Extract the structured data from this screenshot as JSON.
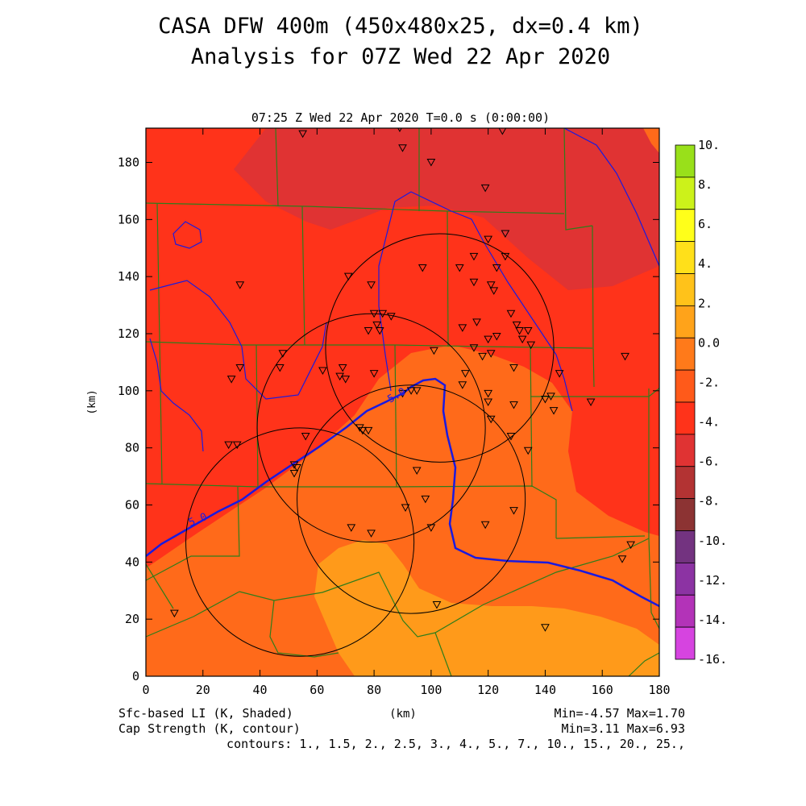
{
  "title_line1": "CASA DFW 400m (450x480x25, dx=0.4 km)",
  "title_line2": "Analysis for 07Z Wed 22 Apr 2020",
  "subtitle": "07:25 Z Wed 22 Apr 2020   T=0.0 s (0:00:00)",
  "xlabel": "(km)",
  "ylabel": "(km)",
  "x_ticks": [
    "0",
    "20",
    "40",
    "60",
    "80",
    "100",
    "120",
    "140",
    "160",
    "180"
  ],
  "y_ticks": [
    "0",
    "20",
    "40",
    "60",
    "80",
    "100",
    "120",
    "140",
    "160",
    "180"
  ],
  "x_range": [
    0,
    180
  ],
  "y_range": [
    0,
    192
  ],
  "colorbar": {
    "labels": [
      "10.",
      "8.",
      "6.",
      "4.",
      "2.",
      "0.0",
      "-2.",
      "-4.",
      "-6.",
      "-8.",
      "-10.",
      "-12.",
      "-14.",
      "-16."
    ],
    "colors": [
      "#99e01a",
      "#ccf21a",
      "#ffff1a",
      "#ffe01a",
      "#ffc21a",
      "#ffa31a",
      "#ff7a1a",
      "#ff5a1a",
      "#ff331a",
      "#e03333",
      "#b33333",
      "#8c3333",
      "#733380",
      "#8c33a3",
      "#b333b8",
      "#d644e0"
    ]
  },
  "field_colors": {
    "band_m6_m4": "#e03333",
    "band_m4_m2": "#ff331a",
    "band_m2_0": "#ff6a1a",
    "band_0_2": "#ff9a1a",
    "cap_contour": "#1a1ae0",
    "boundaries": "#2e7d1a",
    "rings": "#000000"
  },
  "contour_label": "5.0",
  "footer_left1": "Sfc-based LI (K, Shaded)",
  "footer_left2": "Cap Strength (K, contour)",
  "footer_center": "(km)",
  "footer_right1": "Min=-4.57 Max=1.70",
  "footer_right2": "Min=3.11 Max=6.93",
  "footer_contours": "contours: 1., 1.5, 2., 2.5, 3., 4., 5., 7., 10., 15., 20., 25.,",
  "radar_rings": [
    {
      "cx": 54,
      "cy": 47,
      "r": 40
    },
    {
      "cx": 79,
      "cy": 87,
      "r": 40
    },
    {
      "cx": 103,
      "cy": 115,
      "r": 40
    },
    {
      "cx": 93,
      "cy": 62,
      "r": 40
    }
  ],
  "stations": [
    [
      55,
      190
    ],
    [
      89,
      192
    ],
    [
      90,
      185
    ],
    [
      100,
      180
    ],
    [
      125,
      191
    ],
    [
      119,
      171
    ],
    [
      33,
      137
    ],
    [
      71,
      140
    ],
    [
      79,
      137
    ],
    [
      80,
      127
    ],
    [
      83,
      127
    ],
    [
      86,
      126
    ],
    [
      78,
      121
    ],
    [
      82,
      121
    ],
    [
      81,
      123
    ],
    [
      97,
      143
    ],
    [
      110,
      143
    ],
    [
      115,
      147
    ],
    [
      120,
      153
    ],
    [
      126,
      155
    ],
    [
      126,
      147
    ],
    [
      123,
      143
    ],
    [
      115,
      138
    ],
    [
      121,
      137
    ],
    [
      122,
      135
    ],
    [
      128,
      127
    ],
    [
      130,
      123
    ],
    [
      131,
      121
    ],
    [
      134,
      121
    ],
    [
      132,
      118
    ],
    [
      135,
      116
    ],
    [
      123,
      119
    ],
    [
      120,
      118
    ],
    [
      116,
      124
    ],
    [
      111,
      122
    ],
    [
      121,
      113
    ],
    [
      115,
      115
    ],
    [
      118,
      112
    ],
    [
      101,
      114
    ],
    [
      112,
      106
    ],
    [
      129,
      108
    ],
    [
      145,
      106
    ],
    [
      142,
      98
    ],
    [
      140,
      97
    ],
    [
      120,
      99
    ],
    [
      129,
      95
    ],
    [
      143,
      93
    ],
    [
      156,
      96
    ],
    [
      168,
      112
    ],
    [
      48,
      113
    ],
    [
      47,
      108
    ],
    [
      62,
      107
    ],
    [
      70,
      104
    ],
    [
      68,
      105
    ],
    [
      69,
      108
    ],
    [
      30,
      104
    ],
    [
      33,
      108
    ],
    [
      29,
      81
    ],
    [
      32,
      81
    ],
    [
      56,
      84
    ],
    [
      75,
      87
    ],
    [
      76,
      86
    ],
    [
      78,
      86
    ],
    [
      80,
      106
    ],
    [
      90,
      99
    ],
    [
      93,
      100
    ],
    [
      95,
      100
    ],
    [
      111,
      102
    ],
    [
      121,
      90
    ],
    [
      120,
      96
    ],
    [
      128,
      84
    ],
    [
      134,
      79
    ],
    [
      52,
      74
    ],
    [
      53,
      73
    ],
    [
      52,
      71
    ],
    [
      95,
      72
    ],
    [
      91,
      59
    ],
    [
      98,
      62
    ],
    [
      119,
      53
    ],
    [
      129,
      58
    ],
    [
      100,
      52
    ],
    [
      72,
      52
    ],
    [
      79,
      50
    ],
    [
      10,
      22
    ],
    [
      102,
      25
    ],
    [
      140,
      17
    ],
    [
      170,
      46
    ],
    [
      167,
      41
    ]
  ]
}
